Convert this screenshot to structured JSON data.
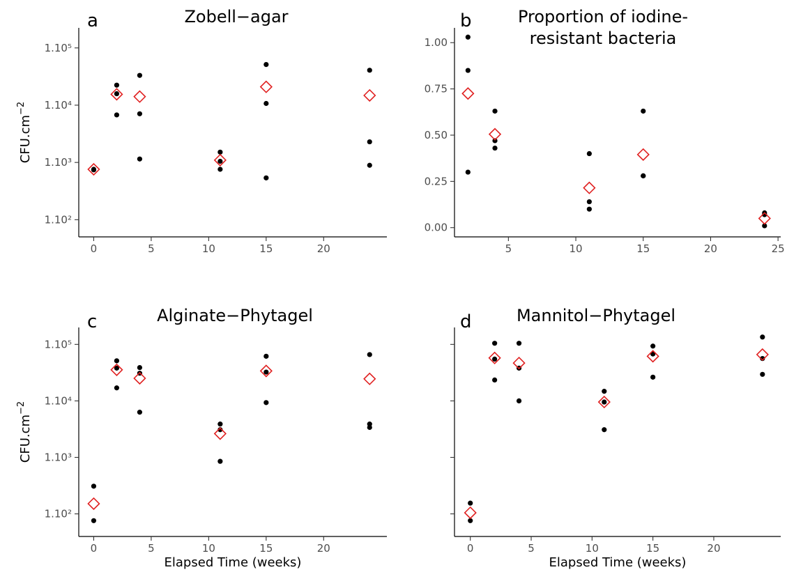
{
  "chart_data": [
    {
      "type": "scatter",
      "panel_label": "a",
      "title": "Zobell−agar",
      "xlabel": "",
      "ylabel": "CFU.cm",
      "ylabel_sup": "−2",
      "xlim": [
        -1.3,
        25.5
      ],
      "ylim": [
        1.7,
        5.35
      ],
      "y_scale": "log10",
      "x_ticks": [
        0,
        5,
        10,
        15,
        20
      ],
      "x_tick_labels": [
        "0",
        "5",
        "10",
        "15",
        "20"
      ],
      "y_ticks": [
        2,
        3,
        4,
        5
      ],
      "y_tick_labels": [
        "1.10²",
        "1.10³",
        "1.10⁴",
        "1.10⁵"
      ],
      "series": [
        {
          "role": "observations",
          "color": "#000000",
          "marker": "circle",
          "x": [
            0,
            0,
            2,
            2,
            2,
            4,
            4,
            4,
            11,
            11,
            11,
            15,
            15,
            15,
            24,
            24,
            24
          ],
          "y": [
            2.87,
            2.88,
            4.35,
            4.2,
            3.83,
            4.52,
            3.85,
            3.06,
            3.18,
            3.02,
            2.88,
            4.71,
            4.03,
            2.73,
            4.61,
            3.36,
            2.95
          ]
        },
        {
          "role": "mean",
          "color": "#e02020",
          "marker": "diamond-open",
          "x": [
            0,
            2,
            4,
            11,
            15,
            24
          ],
          "y": [
            2.88,
            4.19,
            4.15,
            3.04,
            4.32,
            4.17
          ]
        }
      ],
      "grid": false
    },
    {
      "type": "scatter",
      "panel_label": "b",
      "title_lines": [
        "Proportion of iodine-",
        "resistant bacteria"
      ],
      "xlabel": "",
      "ylabel": "",
      "xlim": [
        1,
        25.2
      ],
      "ylim": [
        -0.05,
        1.08
      ],
      "x_ticks": [
        5,
        10,
        15,
        20,
        25
      ],
      "x_tick_labels": [
        "5",
        "10",
        "15",
        "20",
        "25"
      ],
      "y_ticks": [
        0,
        0.25,
        0.5,
        0.75,
        1.0
      ],
      "y_tick_labels": [
        "0.00",
        "0.25",
        "0.50",
        "0.75",
        "1.00"
      ],
      "series": [
        {
          "role": "observations",
          "color": "#000000",
          "marker": "circle",
          "x": [
            2,
            2,
            2,
            4,
            4,
            4,
            11,
            11,
            11,
            15,
            15,
            15,
            24,
            24,
            24
          ],
          "y": [
            1.03,
            0.85,
            0.3,
            0.63,
            0.47,
            0.43,
            0.4,
            0.14,
            0.1,
            0.63,
            0.28,
            0.28,
            0.08,
            0.07,
            0.01
          ]
        },
        {
          "role": "mean",
          "color": "#e02020",
          "marker": "diamond-open",
          "x": [
            2,
            4,
            11,
            15,
            24
          ],
          "y": [
            0.725,
            0.505,
            0.215,
            0.395,
            0.05
          ]
        }
      ],
      "grid": false
    },
    {
      "type": "scatter",
      "panel_label": "c",
      "title": "Alginate−Phytagel",
      "xlabel": "Elapsed Time (weeks)",
      "ylabel": "CFU.cm",
      "ylabel_sup": "−2",
      "xlim": [
        -1.3,
        25.5
      ],
      "ylim": [
        1.6,
        5.3
      ],
      "y_scale": "log10",
      "x_ticks": [
        0,
        5,
        10,
        15,
        20
      ],
      "x_tick_labels": [
        "0",
        "5",
        "10",
        "15",
        "20"
      ],
      "y_ticks": [
        2,
        3,
        4,
        5
      ],
      "y_tick_labels": [
        "1.10²",
        "1.10³",
        "1.10⁴",
        "1.10⁵"
      ],
      "series": [
        {
          "role": "observations",
          "color": "#000000",
          "marker": "circle",
          "x": [
            0,
            0,
            2,
            2,
            2,
            4,
            4,
            4,
            11,
            11,
            11,
            15,
            15,
            15,
            24,
            24,
            24
          ],
          "y": [
            2.49,
            1.88,
            4.71,
            4.58,
            4.23,
            4.59,
            4.49,
            3.8,
            3.59,
            3.49,
            2.93,
            4.79,
            3.97,
            4.51,
            4.82,
            3.59,
            3.53
          ]
        },
        {
          "role": "mean",
          "color": "#e02020",
          "marker": "diamond-open",
          "x": [
            0,
            2,
            4,
            11,
            15,
            24
          ],
          "y": [
            2.18,
            4.55,
            4.4,
            3.42,
            4.53,
            4.39
          ]
        }
      ],
      "grid": false
    },
    {
      "type": "scatter",
      "panel_label": "d",
      "title": "Mannitol−Phytagel",
      "xlabel": "Elapsed Time (weeks)",
      "ylabel": "",
      "xlim": [
        -1.3,
        25.5
      ],
      "ylim": [
        1.6,
        5.3
      ],
      "y_scale": "log10",
      "x_ticks": [
        0,
        5,
        10,
        15,
        20
      ],
      "x_tick_labels": [
        "0",
        "5",
        "10",
        "15",
        "20"
      ],
      "y_ticks": [
        2,
        3,
        4,
        5
      ],
      "y_tick_labels": [
        "",
        "",
        "",
        ""
      ],
      "series": [
        {
          "role": "observations",
          "color": "#000000",
          "marker": "circle",
          "x": [
            0,
            0,
            2,
            2,
            2,
            4,
            4,
            4,
            11,
            11,
            11,
            15,
            15,
            15,
            24,
            24,
            24
          ],
          "y": [
            2.19,
            1.88,
            5.02,
            4.74,
            4.37,
            5.02,
            4.58,
            4.0,
            4.17,
            3.98,
            3.49,
            4.97,
            4.83,
            4.42,
            5.13,
            4.75,
            4.47
          ]
        },
        {
          "role": "mean",
          "color": "#e02020",
          "marker": "diamond-open",
          "x": [
            0,
            2,
            4,
            11,
            15,
            24
          ],
          "y": [
            2.02,
            4.76,
            4.67,
            3.98,
            4.79,
            4.82
          ]
        }
      ],
      "grid": false
    }
  ]
}
